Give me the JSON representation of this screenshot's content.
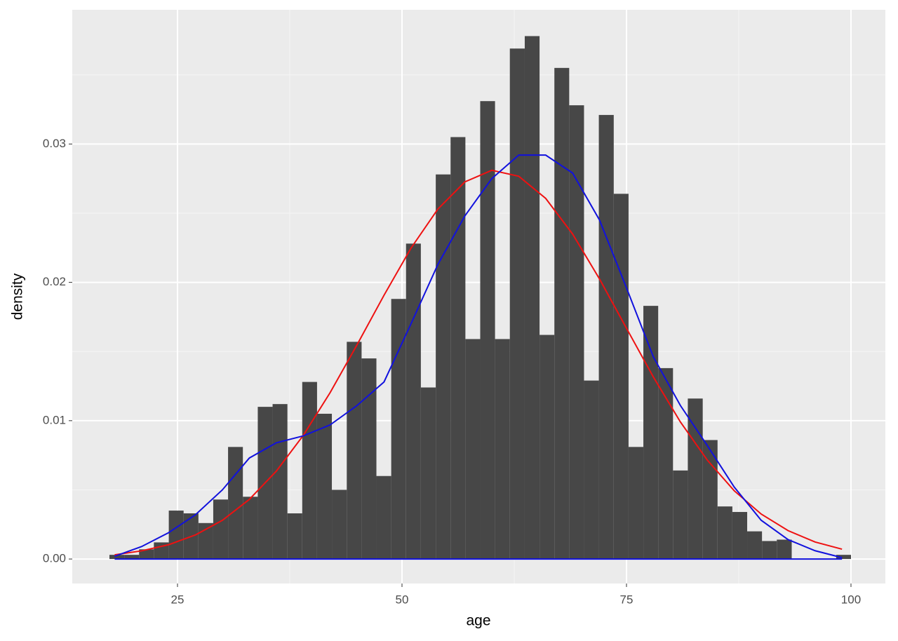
{
  "chart_data": {
    "type": "histogram",
    "xlabel": "age",
    "ylabel": "density",
    "color": "#474747",
    "bins": [
      17.42,
      19.07,
      20.72,
      22.37,
      24.03,
      25.68,
      27.33,
      28.98,
      30.63,
      32.28,
      33.94,
      35.59,
      37.24,
      38.89,
      40.54,
      42.19,
      43.85,
      45.5,
      47.15,
      48.8,
      50.45,
      52.1,
      53.76,
      55.41,
      57.06,
      58.71,
      60.36,
      62.01,
      63.67,
      65.32,
      66.97,
      68.62,
      70.27,
      71.92,
      73.58,
      75.23,
      76.88,
      78.53,
      80.18,
      81.83,
      83.49,
      85.14,
      86.79,
      88.44,
      90.09,
      91.74,
      93.4,
      95.05,
      96.7,
      98.35,
      100.0
    ],
    "values": [
      0.0003,
      0.0003,
      0.0007,
      0.0012,
      0.0035,
      0.0033,
      0.0026,
      0.0043,
      0.0081,
      0.0045,
      0.011,
      0.0112,
      0.0033,
      0.0128,
      0.0105,
      0.005,
      0.0157,
      0.0145,
      0.006,
      0.0188,
      0.0228,
      0.0124,
      0.0278,
      0.0305,
      0.0159,
      0.0331,
      0.0159,
      0.0369,
      0.0378,
      0.0162,
      0.0355,
      0.0328,
      0.0129,
      0.0321,
      0.0264,
      0.0081,
      0.0183,
      0.0138,
      0.0064,
      0.0116,
      0.0086,
      0.0038,
      0.0034,
      0.002,
      0.0013,
      0.0014,
      0,
      0,
      0,
      0.0003
    ],
    "lines": [
      {
        "color": "#ee1111",
        "x": [
          18,
          21,
          24,
          27,
          30,
          33,
          36,
          39,
          42,
          45,
          48,
          51,
          54,
          57,
          60,
          63,
          66,
          69,
          72,
          75,
          78,
          81,
          84,
          87,
          90,
          93,
          96,
          99
        ],
        "values": [
          0.0003,
          0.00059,
          0.00103,
          0.00174,
          0.0028,
          0.00431,
          0.00635,
          0.00893,
          0.01203,
          0.01549,
          0.01907,
          0.02247,
          0.0253,
          0.02726,
          0.0281,
          0.02767,
          0.02607,
          0.02349,
          0.02024,
          0.01668,
          0.01315,
          0.00991,
          0.00715,
          0.00493,
          0.00325,
          0.00205,
          0.00123,
          0.00071
        ]
      },
      {
        "color": "#1111dd",
        "x": [
          18,
          21,
          24,
          27,
          30,
          33,
          36,
          39,
          42,
          45,
          48,
          51,
          54,
          57,
          60,
          63,
          66,
          69,
          72,
          75,
          78,
          81,
          84,
          87,
          90,
          93,
          96,
          99
        ],
        "values": [
          0.0002,
          0.0009,
          0.0019,
          0.0032,
          0.005,
          0.0073,
          0.0084,
          0.0089,
          0.0097,
          0.0111,
          0.0128,
          0.017,
          0.0213,
          0.0248,
          0.0275,
          0.0292,
          0.0292,
          0.0279,
          0.0245,
          0.0196,
          0.0146,
          0.0111,
          0.0082,
          0.0052,
          0.0028,
          0.0014,
          0.0006,
          0.0001
        ]
      }
    ],
    "xlim": [
      13.28,
      103.83
    ],
    "ylim": [
      -0.00177,
      0.0397
    ],
    "xticks": [
      25,
      50,
      75,
      100
    ],
    "yticks": [
      {
        "value": 0,
        "label": "0.00"
      },
      0.01,
      0.02,
      0.03
    ],
    "grid": true
  }
}
